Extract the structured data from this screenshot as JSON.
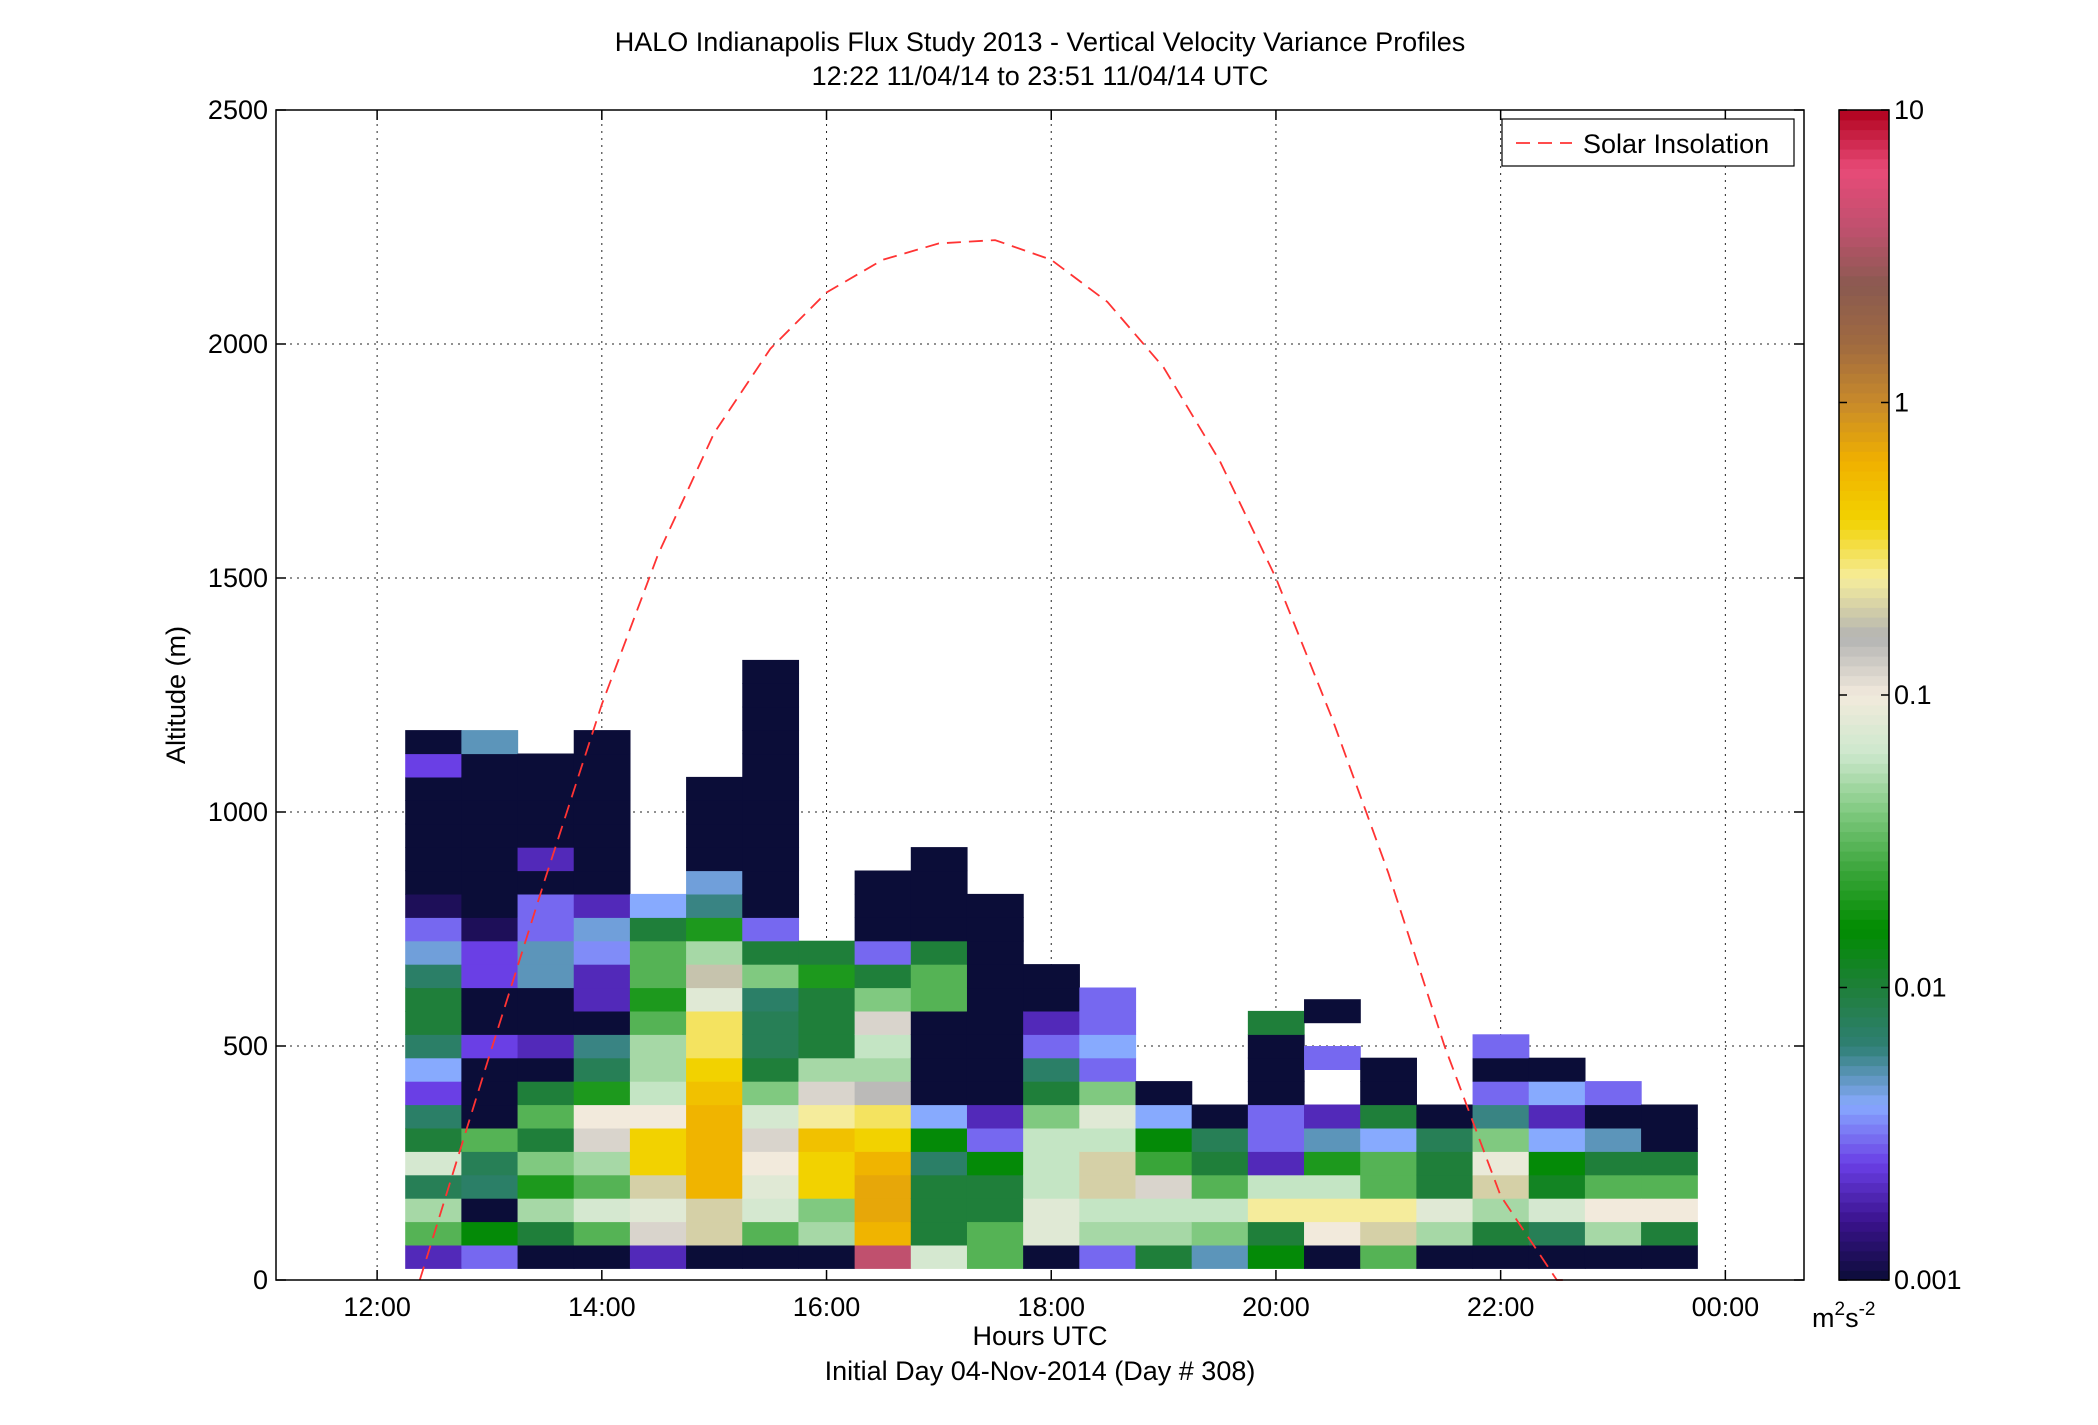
{
  "chart_data": {
    "type": "heatmap",
    "title": "HALO Indianapolis Flux Study 2013 - Vertical Velocity Variance Profiles",
    "subtitle": "12:22 11/04/14 to 23:51 11/04/14  UTC",
    "xlabel": "Hours UTC",
    "xlabel2": "Initial Day 04-Nov-2014 (Day # 308)",
    "ylabel": "Altitude (m)",
    "x_unit": "hours UTC",
    "xlim": [
      11.1,
      24.7
    ],
    "ylim": [
      0,
      2500
    ],
    "x_ticks": [
      {
        "value": 12,
        "label": "12:00"
      },
      {
        "value": 14,
        "label": "14:00"
      },
      {
        "value": 16,
        "label": "16:00"
      },
      {
        "value": 18,
        "label": "18:00"
      },
      {
        "value": 20,
        "label": "20:00"
      },
      {
        "value": 22,
        "label": "22:00"
      },
      {
        "value": 24,
        "label": "00:00"
      }
    ],
    "y_ticks": [
      {
        "value": 0,
        "label": "0"
      },
      {
        "value": 500,
        "label": "500"
      },
      {
        "value": 1000,
        "label": "1000"
      },
      {
        "value": 1500,
        "label": "1500"
      },
      {
        "value": 2000,
        "label": "2000"
      },
      {
        "value": 2500,
        "label": "2500"
      }
    ],
    "grid": true,
    "colorbar": {
      "scale": "log",
      "min": 0.001,
      "max": 10,
      "ticks": [
        {
          "value": 0.001,
          "label": "0.001"
        },
        {
          "value": 0.01,
          "label": "0.01"
        },
        {
          "value": 0.1,
          "label": "0.1"
        },
        {
          "value": 1,
          "label": "1"
        },
        {
          "value": 10,
          "label": "10"
        }
      ],
      "unit_base": "m",
      "unit_sup1": "2",
      "unit_mid": "s",
      "unit_sup2": "-2",
      "colors": [
        "#0b0d38",
        "#3a128c",
        "#6a3fe6",
        "#88aaff",
        "#2f7f74",
        "#1f7f3a",
        "#008c00",
        "#3aa53a",
        "#7fc97f",
        "#cde8cd",
        "#f2eadc",
        "#b3b3b3",
        "#f6ed9c",
        "#f2d200",
        "#f0b000",
        "#c88a2a",
        "#a06a40",
        "#8a5a50",
        "#c0506e",
        "#e84a78",
        "#b0001c"
      ]
    },
    "legend": {
      "position": "top-right",
      "entries": [
        {
          "label": "Solar Insolation",
          "color": "#ff3333",
          "style": "dashed"
        }
      ]
    },
    "solar_insolation": {
      "x": [
        12.38,
        13.0,
        13.5,
        14.0,
        14.5,
        15.0,
        15.5,
        16.0,
        16.5,
        17.0,
        17.5,
        18.0,
        18.5,
        19.0,
        19.5,
        20.0,
        20.5,
        21.0,
        21.5,
        22.0,
        22.5,
        22.58
      ],
      "y": [
        0,
        480,
        860,
        1230,
        1550,
        1810,
        1990,
        2110,
        2180,
        2215,
        2222,
        2180,
        2090,
        1950,
        1750,
        1500,
        1200,
        870,
        500,
        180,
        -150,
        -200
      ]
    },
    "bin_width_hours": 0.5,
    "bin_height_m": 50,
    "profiles": [
      {
        "t": 12.5,
        "start": 50,
        "v": [
          0.002,
          0.03,
          0.05,
          0.008,
          0.07,
          0.01,
          0.007,
          0.0025,
          0.004,
          0.007,
          0.01,
          0.01,
          0.007,
          0.0045,
          0.003,
          0.0012,
          0.001,
          0.001,
          0.001,
          0.001,
          0.001,
          0.0025,
          0.001
        ]
      },
      {
        "t": 13.0,
        "start": 50,
        "v": [
          0.003,
          0.015,
          0.001,
          0.007,
          0.008,
          0.03,
          0.001,
          0.001,
          0.001,
          0.0025,
          0.001,
          0.001,
          0.0025,
          0.0025,
          0.0012,
          0.001,
          0.001,
          0.001,
          0.001,
          0.001,
          0.001,
          0.001,
          0.005
        ]
      },
      {
        "t": 13.5,
        "start": 50,
        "v": [
          0.001,
          0.01,
          0.05,
          0.02,
          0.04,
          0.01,
          0.03,
          0.01,
          0.001,
          0.002,
          0.001,
          0.001,
          0.005,
          0.005,
          0.003,
          0.003,
          0.001,
          0.002,
          0.001,
          0.001,
          0.001,
          0.001
        ]
      },
      {
        "t": 14.0,
        "start": 50,
        "v": [
          0.001,
          0.03,
          0.07,
          0.03,
          0.05,
          0.12,
          0.1,
          0.02,
          0.008,
          0.006,
          0.001,
          0.002,
          0.002,
          0.0035,
          0.0045,
          0.002,
          0.001,
          0.001,
          0.001,
          0.001,
          0.001,
          0.001,
          0.001
        ]
      },
      {
        "t": 14.5,
        "start": 50,
        "v": [
          0.002,
          0.12,
          0.08,
          0.2,
          0.4,
          0.4,
          0.1,
          0.06,
          0.05,
          0.05,
          0.03,
          0.02,
          0.03,
          0.03,
          0.01,
          0.004
        ]
      },
      {
        "t": 15.0,
        "start": 50,
        "v": [
          0.001,
          0.2,
          0.2,
          0.6,
          0.6,
          0.6,
          0.6,
          0.5,
          0.4,
          0.3,
          0.3,
          0.08,
          0.18,
          0.05,
          0.02,
          0.006,
          0.0045,
          0.001,
          0.001,
          0.001,
          0.001
        ]
      },
      {
        "t": 15.5,
        "start": 50,
        "v": [
          0.001,
          0.03,
          0.07,
          0.08,
          0.1,
          0.12,
          0.07,
          0.04,
          0.01,
          0.008,
          0.008,
          0.007,
          0.04,
          0.01,
          0.003,
          0.001,
          0.001,
          0.001,
          0.001,
          0.001,
          0.001,
          0.001,
          0.001,
          0.001,
          0.001,
          0.001
        ]
      },
      {
        "t": 16.0,
        "start": 50,
        "v": [
          0.001,
          0.05,
          0.04,
          0.4,
          0.4,
          0.5,
          0.25,
          0.12,
          0.05,
          0.01,
          0.01,
          0.01,
          0.02,
          0.01
        ]
      },
      {
        "t": 16.5,
        "start": 50,
        "v": [
          4.0,
          0.6,
          0.7,
          0.7,
          0.6,
          0.4,
          0.3,
          0.15,
          0.05,
          0.06,
          0.12,
          0.04,
          0.01,
          0.003,
          0.001,
          0.001,
          0.001
        ]
      },
      {
        "t": 17.0,
        "start": 50,
        "v": [
          0.07,
          0.01,
          0.01,
          0.01,
          0.007,
          0.015,
          0.004,
          0.001,
          0.001,
          0.001,
          0.001,
          0.03,
          0.03,
          0.01,
          0.001,
          0.001,
          0.001,
          0.001
        ]
      },
      {
        "t": 17.5,
        "start": 50,
        "v": [
          0.03,
          0.03,
          0.01,
          0.01,
          0.015,
          0.003,
          0.002,
          0.001,
          0.001,
          0.001,
          0.001,
          0.001,
          0.001,
          0.001,
          0.001,
          0.001
        ]
      },
      {
        "t": 18.0,
        "start": 50,
        "v": [
          0.001,
          0.08,
          0.08,
          0.06,
          0.06,
          0.06,
          0.04,
          0.01,
          0.007,
          0.003,
          0.002,
          0.001,
          0.001
        ]
      },
      {
        "t": 18.5,
        "start": 50,
        "v": [
          0.003,
          0.05,
          0.06,
          0.2,
          0.2,
          0.06,
          0.08,
          0.04,
          0.003,
          0.004,
          0.003,
          0.003
        ]
      },
      {
        "t": 19.0,
        "start": 50,
        "v": [
          0.01,
          0.05,
          0.06,
          0.12,
          0.025,
          0.015,
          0.004,
          0.001
        ]
      },
      {
        "t": 19.5,
        "start": 50,
        "v": [
          0.005,
          0.04,
          0.06,
          0.03,
          0.01,
          0.008,
          0.001
        ]
      },
      {
        "t": 20.0,
        "start": 50,
        "v": [
          0.015,
          0.01,
          0.25,
          0.06,
          0.002,
          0.003,
          0.003,
          0.001,
          0.001,
          0.001,
          0.01
        ]
      },
      {
        "t": 20.5,
        "start": 50,
        "v": [
          0.001,
          0.1,
          0.25,
          0.06,
          0.02,
          0.005,
          0.002
        ],
        "extra": [
          {
            "alt": 575,
            "v": 0.001
          },
          {
            "alt": 475,
            "v": 0.003
          }
        ]
      },
      {
        "t": 21.0,
        "start": 50,
        "v": [
          0.03,
          0.2,
          0.25,
          0.03,
          0.03,
          0.004,
          0.01,
          0.001,
          0.001
        ]
      },
      {
        "t": 21.5,
        "start": 50,
        "v": [
          0.001,
          0.05,
          0.08,
          0.01,
          0.01,
          0.008,
          0.001
        ]
      },
      {
        "t": 22.0,
        "start": 50,
        "v": [
          0.001,
          0.01,
          0.05,
          0.2,
          0.09,
          0.04,
          0.006,
          0.003,
          0.001,
          0.003
        ]
      },
      {
        "t": 22.5,
        "start": 50,
        "v": [
          0.001,
          0.008,
          0.07,
          0.012,
          0.015,
          0.004,
          0.002,
          0.004,
          0.001
        ]
      },
      {
        "t": 23.0,
        "start": 50,
        "v": [
          0.001,
          0.05,
          0.1,
          0.03,
          0.01,
          0.005,
          0.001,
          0.003
        ]
      },
      {
        "t": 23.5,
        "start": 50,
        "v": [
          0.001,
          0.01,
          0.1,
          0.03,
          0.01,
          0.001,
          0.001
        ]
      }
    ]
  }
}
